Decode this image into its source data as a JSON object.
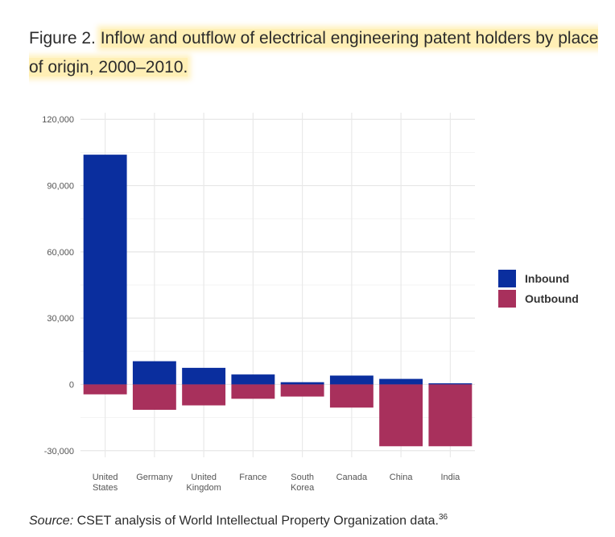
{
  "figure": {
    "label": "Figure 2.",
    "title": "Inflow and outflow of electrical engineering patent holders by place of origin, 2000–2010."
  },
  "source": {
    "label": "Source:",
    "text": "CSET analysis of World Intellectual Property Organization data.",
    "footnote": "36"
  },
  "chart_data": {
    "type": "bar",
    "categories": [
      "United States",
      "Germany",
      "United Kingdom",
      "France",
      "South Korea",
      "Canada",
      "China",
      "India"
    ],
    "category_lines": [
      [
        "United",
        "States"
      ],
      [
        "Germany"
      ],
      [
        "United",
        "Kingdom"
      ],
      [
        "France"
      ],
      [
        "South",
        "Korea"
      ],
      [
        "Canada"
      ],
      [
        "China"
      ],
      [
        "India"
      ]
    ],
    "series": [
      {
        "name": "Inbound",
        "color": "#0A2E9E",
        "values": [
          104000,
          10500,
          7500,
          4500,
          1000,
          4000,
          2500,
          500
        ]
      },
      {
        "name": "Outbound",
        "color": "#A8305C",
        "values": [
          -4500,
          -11500,
          -9500,
          -6500,
          -5500,
          -10500,
          -28000,
          -28000
        ]
      }
    ],
    "ylim": [
      -33000,
      123000
    ],
    "yticks": [
      -30000,
      0,
      30000,
      60000,
      90000,
      120000
    ],
    "ytick_labels": [
      "-30,000",
      "0",
      "30,000",
      "60,000",
      "90,000",
      "120,000"
    ],
    "legend_position": "right",
    "grid": true
  }
}
